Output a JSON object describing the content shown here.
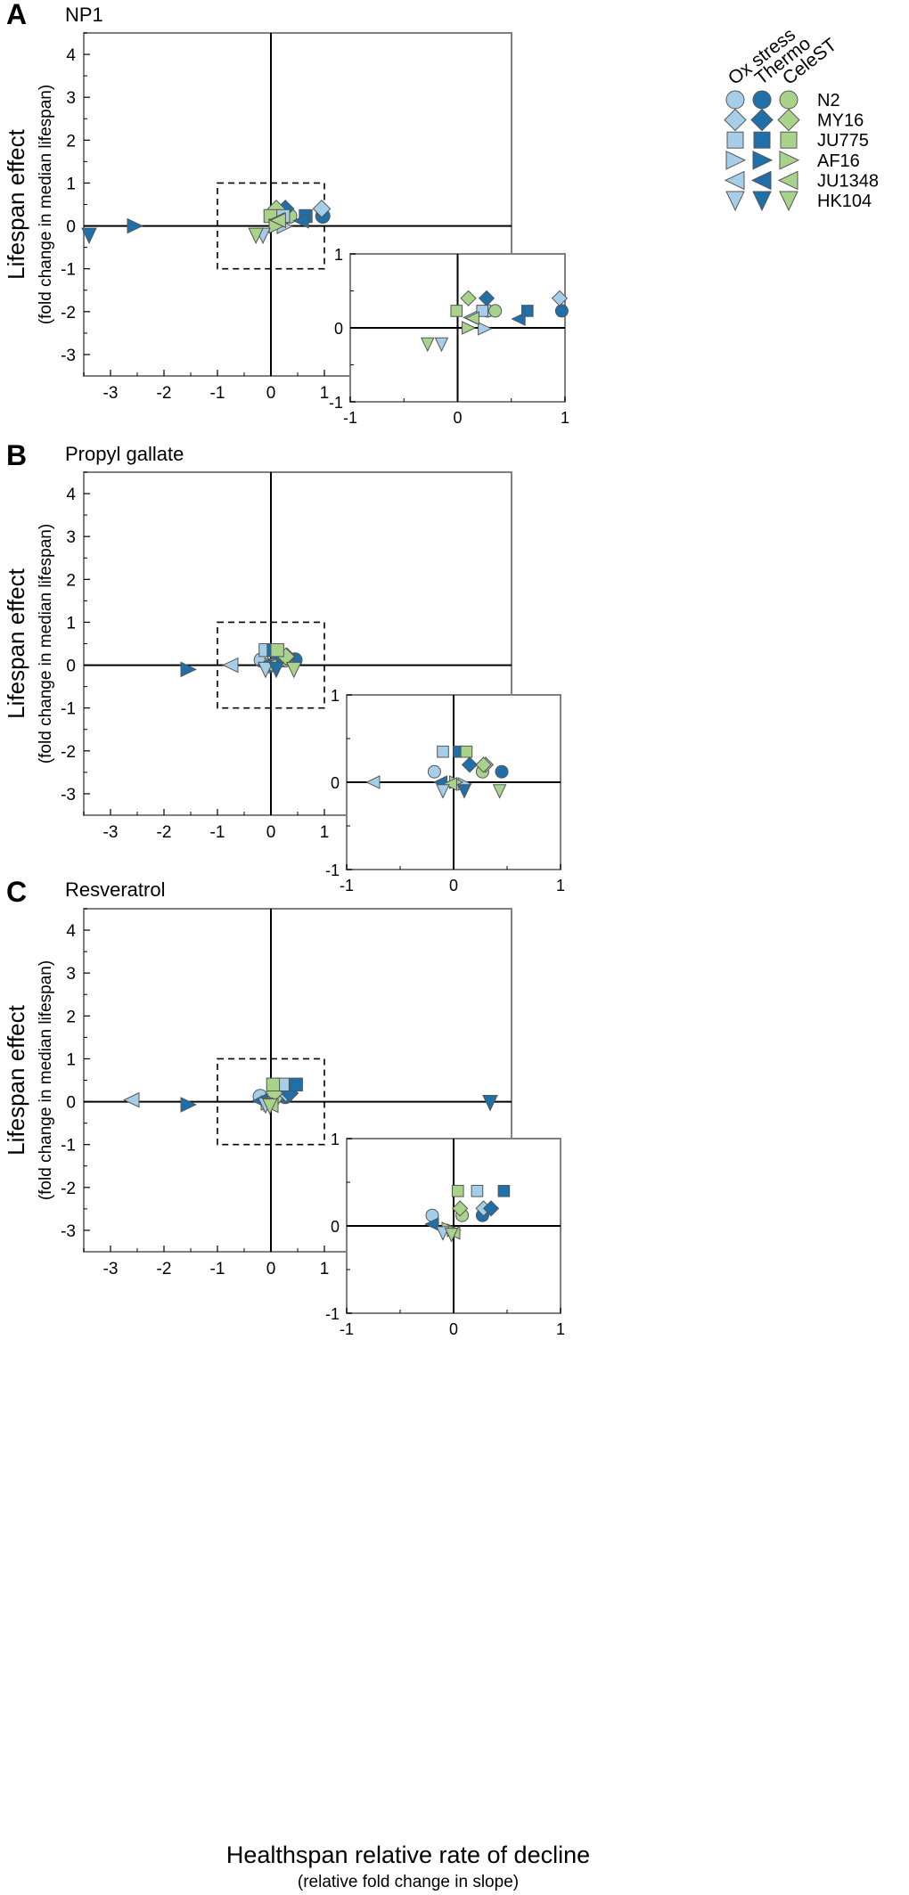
{
  "figure": {
    "y_axis_label": "Lifespan effect",
    "y_axis_sublabel": "(fold change in median lifespan)",
    "x_axis_label": "Healthspan relative rate of decline",
    "x_axis_sublabel": "(relative fold change in slope)"
  },
  "legend": {
    "columns": [
      "Ox stress",
      "Thermo",
      "CeleST"
    ],
    "strains": [
      {
        "name": "N2",
        "marker": "circle"
      },
      {
        "name": "MY16",
        "marker": "diamond"
      },
      {
        "name": "JU775",
        "marker": "square"
      },
      {
        "name": "AF16",
        "marker": "triangle-right"
      },
      {
        "name": "JU1348",
        "marker": "triangle-left"
      },
      {
        "name": "HK104",
        "marker": "triangle-down"
      }
    ]
  },
  "colors": {
    "Ox stress": "#a6cee8",
    "Thermo": "#1f6fa8",
    "CeleST": "#a9d38b",
    "axes": "#808080"
  },
  "chart_data": [
    {
      "type": "scatter",
      "panel": "A",
      "title": "NP1",
      "xlim": [
        -3.5,
        4.5
      ],
      "ylim": [
        -3.5,
        4.5
      ],
      "x_ticks": [
        "-3",
        "-2",
        "-1",
        "0",
        "1"
      ],
      "y_ticks": [
        "4",
        "3",
        "2",
        "1",
        "0",
        "-1",
        "-2",
        "-3"
      ],
      "inset": {
        "xlim": [
          -1,
          1
        ],
        "ylim": [
          -1,
          1
        ],
        "x_ticks": [
          "-1",
          "0",
          "1"
        ],
        "y_ticks": [
          "1",
          "0",
          "-1"
        ]
      },
      "points": [
        {
          "strain": "N2",
          "assay": "Ox stress",
          "x": 0.28,
          "y": 0.23
        },
        {
          "strain": "N2",
          "assay": "Thermo",
          "x": 0.97,
          "y": 0.23
        },
        {
          "strain": "N2",
          "assay": "CeleST",
          "x": 0.35,
          "y": 0.23
        },
        {
          "strain": "MY16",
          "assay": "Ox stress",
          "x": 0.95,
          "y": 0.4
        },
        {
          "strain": "MY16",
          "assay": "Thermo",
          "x": 0.27,
          "y": 0.4
        },
        {
          "strain": "MY16",
          "assay": "CeleST",
          "x": 0.1,
          "y": 0.4
        },
        {
          "strain": "JU775",
          "assay": "Ox stress",
          "x": 0.23,
          "y": 0.23
        },
        {
          "strain": "JU775",
          "assay": "Thermo",
          "x": 0.65,
          "y": 0.23
        },
        {
          "strain": "JU775",
          "assay": "CeleST",
          "x": -0.01,
          "y": 0.23
        },
        {
          "strain": "AF16",
          "assay": "Ox stress",
          "x": 0.25,
          "y": -0.01
        },
        {
          "strain": "AF16",
          "assay": "Thermo",
          "x": -2.55,
          "y": 0.0
        },
        {
          "strain": "AF16",
          "assay": "CeleST",
          "x": 0.1,
          "y": 0.0
        },
        {
          "strain": "JU1348",
          "assay": "Ox stress",
          "x": 0.12,
          "y": 0.14
        },
        {
          "strain": "JU1348",
          "assay": "Thermo",
          "x": 0.57,
          "y": 0.12
        },
        {
          "strain": "JU1348",
          "assay": "CeleST",
          "x": 0.14,
          "y": 0.13
        },
        {
          "strain": "HK104",
          "assay": "Ox stress",
          "x": -0.15,
          "y": -0.22
        },
        {
          "strain": "HK104",
          "assay": "Thermo",
          "x": -3.4,
          "y": -0.22
        },
        {
          "strain": "HK104",
          "assay": "CeleST",
          "x": -0.28,
          "y": -0.22
        }
      ]
    },
    {
      "type": "scatter",
      "panel": "B",
      "title": "Propyl gallate",
      "xlim": [
        -3.5,
        4.5
      ],
      "ylim": [
        -3.5,
        4.5
      ],
      "x_ticks": [
        "-3",
        "-2",
        "-1",
        "0",
        "1"
      ],
      "y_ticks": [
        "4",
        "3",
        "2",
        "1",
        "0",
        "-1",
        "-2",
        "-3"
      ],
      "inset": {
        "xlim": [
          -1,
          1
        ],
        "ylim": [
          -1,
          1
        ],
        "x_ticks": [
          "-1",
          "0",
          "1"
        ],
        "y_ticks": [
          "1",
          "0",
          "-1"
        ]
      },
      "points": [
        {
          "strain": "N2",
          "assay": "Ox stress",
          "x": -0.18,
          "y": 0.12
        },
        {
          "strain": "N2",
          "assay": "Thermo",
          "x": 0.45,
          "y": 0.12
        },
        {
          "strain": "N2",
          "assay": "CeleST",
          "x": 0.27,
          "y": 0.12
        },
        {
          "strain": "MY16",
          "assay": "Ox stress",
          "x": 0.3,
          "y": 0.2
        },
        {
          "strain": "MY16",
          "assay": "Thermo",
          "x": 0.15,
          "y": 0.2
        },
        {
          "strain": "MY16",
          "assay": "CeleST",
          "x": 0.28,
          "y": 0.2
        },
        {
          "strain": "JU775",
          "assay": "Ox stress",
          "x": -0.1,
          "y": 0.35
        },
        {
          "strain": "JU775",
          "assay": "Thermo",
          "x": 0.05,
          "y": 0.35
        },
        {
          "strain": "JU775",
          "assay": "CeleST",
          "x": 0.12,
          "y": 0.35
        },
        {
          "strain": "AF16",
          "assay": "Ox stress",
          "x": 0.1,
          "y": -0.02
        },
        {
          "strain": "AF16",
          "assay": "Thermo",
          "x": -1.55,
          "y": -0.1
        },
        {
          "strain": "AF16",
          "assay": "CeleST",
          "x": 0.02,
          "y": 0.0
        },
        {
          "strain": "JU1348",
          "assay": "Ox stress",
          "x": -0.75,
          "y": 0.0
        },
        {
          "strain": "JU1348",
          "assay": "Thermo",
          "x": -0.12,
          "y": 0.0
        },
        {
          "strain": "JU1348",
          "assay": "CeleST",
          "x": -0.03,
          "y": -0.02
        },
        {
          "strain": "HK104",
          "assay": "Ox stress",
          "x": -0.1,
          "y": -0.1
        },
        {
          "strain": "HK104",
          "assay": "Thermo",
          "x": 0.1,
          "y": -0.1
        },
        {
          "strain": "HK104",
          "assay": "CeleST",
          "x": 0.43,
          "y": -0.1
        }
      ]
    },
    {
      "type": "scatter",
      "panel": "C",
      "title": "Resveratrol",
      "xlim": [
        -3.5,
        4.5
      ],
      "ylim": [
        -3.5,
        4.5
      ],
      "x_ticks": [
        "-3",
        "-2",
        "-1",
        "0",
        "1"
      ],
      "y_ticks": [
        "4",
        "3",
        "2",
        "1",
        "0",
        "-1",
        "-2",
        "-3"
      ],
      "inset": {
        "xlim": [
          -1,
          1
        ],
        "ylim": [
          -1,
          1
        ],
        "x_ticks": [
          "-1",
          "0",
          "1"
        ],
        "y_ticks": [
          "1",
          "0",
          "-1"
        ]
      },
      "points": [
        {
          "strain": "N2",
          "assay": "Ox stress",
          "x": -0.2,
          "y": 0.12
        },
        {
          "strain": "N2",
          "assay": "Thermo",
          "x": 0.27,
          "y": 0.12
        },
        {
          "strain": "N2",
          "assay": "CeleST",
          "x": 0.08,
          "y": 0.12
        },
        {
          "strain": "MY16",
          "assay": "Ox stress",
          "x": 0.28,
          "y": 0.2
        },
        {
          "strain": "MY16",
          "assay": "Thermo",
          "x": 0.35,
          "y": 0.2
        },
        {
          "strain": "MY16",
          "assay": "CeleST",
          "x": 0.06,
          "y": 0.2
        },
        {
          "strain": "JU775",
          "assay": "Ox stress",
          "x": 0.22,
          "y": 0.4
        },
        {
          "strain": "JU775",
          "assay": "Thermo",
          "x": 0.47,
          "y": 0.4
        },
        {
          "strain": "JU775",
          "assay": "CeleST",
          "x": 0.04,
          "y": 0.4
        },
        {
          "strain": "AF16",
          "assay": "Ox stress",
          "x": 0.0,
          "y": -0.05
        },
        {
          "strain": "AF16",
          "assay": "Thermo",
          "x": -1.55,
          "y": -0.07
        },
        {
          "strain": "AF16",
          "assay": "CeleST",
          "x": -0.05,
          "y": -0.03
        },
        {
          "strain": "JU1348",
          "assay": "Ox stress",
          "x": -2.6,
          "y": 0.04
        },
        {
          "strain": "JU1348",
          "assay": "Thermo",
          "x": -0.2,
          "y": 0.02
        },
        {
          "strain": "JU1348",
          "assay": "CeleST",
          "x": 0.0,
          "y": -0.08
        },
        {
          "strain": "HK104",
          "assay": "Ox stress",
          "x": -0.1,
          "y": -0.08
        },
        {
          "strain": "HK104",
          "assay": "Thermo",
          "x": 4.1,
          "y": -0.02
        },
        {
          "strain": "HK104",
          "assay": "CeleST",
          "x": -0.02,
          "y": -0.1
        }
      ]
    }
  ]
}
